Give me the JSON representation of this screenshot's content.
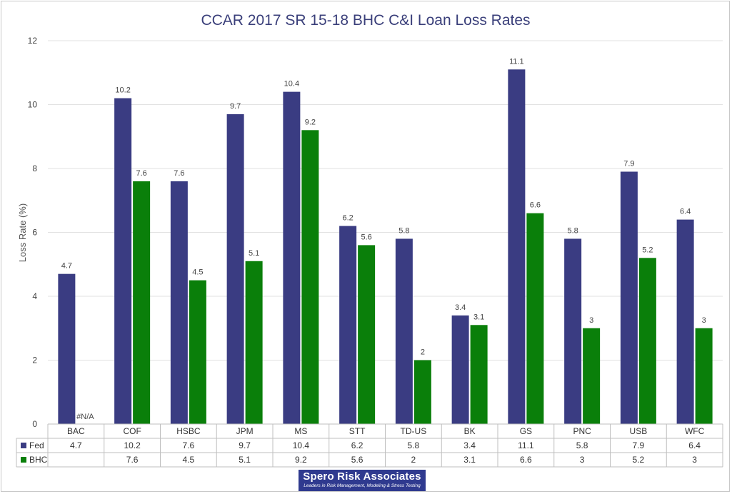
{
  "chart_data": {
    "type": "bar",
    "title": "CCAR 2017 SR 15-18 BHC C&I Loan Loss Rates",
    "ylabel": "Loss Rate (%)",
    "xlabel": "",
    "ylim": [
      0,
      12
    ],
    "yticks": [
      0,
      2,
      4,
      6,
      8,
      10,
      12
    ],
    "grid": true,
    "legend": "data-table",
    "categories": [
      "BAC",
      "COF",
      "HSBC",
      "JPM",
      "MS",
      "STT",
      "TD-US",
      "BK",
      "GS",
      "PNC",
      "USB",
      "WFC"
    ],
    "series": [
      {
        "name": "Fed",
        "color": "#3a3c82",
        "values": [
          4.7,
          10.2,
          7.6,
          9.7,
          10.4,
          6.2,
          5.8,
          3.4,
          11.1,
          5.8,
          7.9,
          6.4
        ],
        "labels": [
          "4.7",
          "10.2",
          "7.6",
          "9.7",
          "10.4",
          "6.2",
          "5.8",
          "3.4",
          "11.1",
          "5.8",
          "7.9",
          "6.4"
        ],
        "table": [
          "4.7",
          "10.2",
          "7.6",
          "9.7",
          "10.4",
          "6.2",
          "5.8",
          "3.4",
          "11.1",
          "5.8",
          "7.9",
          "6.4"
        ]
      },
      {
        "name": "BHC",
        "color": "#0a7f0a",
        "values": [
          null,
          7.6,
          4.5,
          5.1,
          9.2,
          5.6,
          2,
          3.1,
          6.6,
          3,
          5.2,
          3
        ],
        "labels": [
          "#N/A",
          "7.6",
          "4.5",
          "5.1",
          "9.2",
          "5.6",
          "2",
          "3.1",
          "6.6",
          "3",
          "5.2",
          "3"
        ],
        "table": [
          "",
          "7.6",
          "4.5",
          "5.1",
          "9.2",
          "5.6",
          "2",
          "3.1",
          "6.6",
          "3",
          "5.2",
          "3"
        ]
      }
    ]
  },
  "logo": {
    "name": "Spero Risk Associates",
    "tagline": "Leaders in Risk Management, Modeling & Stress Testing"
  }
}
